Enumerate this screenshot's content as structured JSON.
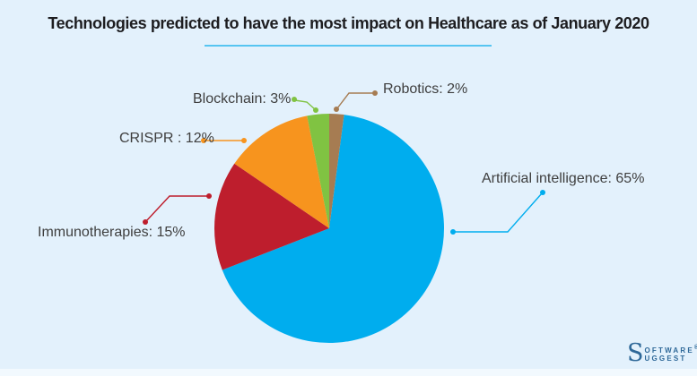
{
  "page": {
    "background": "#E3F1FC",
    "title": "Technologies predicted to have the most impact on Healthcare as of January 2020",
    "title_color": "#1D1D20",
    "underline_color": "#56C5F1"
  },
  "chart_data": {
    "type": "pie",
    "title": "Technologies predicted to have the most impact on Healthcare as of January 2020",
    "labels_style": "outside-leader-lines",
    "legend_position": "none",
    "total_of_shown_percentages": 97,
    "slices": [
      {
        "name": "Artificial intelligence",
        "value": 65,
        "label_text": "Artificial intelligence: 65%",
        "color": "#00ADEE"
      },
      {
        "name": "Immunotherapies",
        "value": 15,
        "label_text": "Immunotherapies: 15%",
        "color": "#BE1E2D"
      },
      {
        "name": "CRISPR",
        "value": 12,
        "label_text": "CRISPR : 12%",
        "color": "#F7941E"
      },
      {
        "name": "Blockchain",
        "value": 3,
        "label_text": "Blockchain: 3%",
        "color": "#80C342"
      },
      {
        "name": "Robotics",
        "value": 2,
        "label_text": "Robotics: 2%",
        "color": "#A67C52"
      }
    ]
  },
  "branding": {
    "initial": "S",
    "line1": "OFTWARE",
    "registered_mark": "®",
    "line2": "UGGEST",
    "color": "#2E6898"
  }
}
